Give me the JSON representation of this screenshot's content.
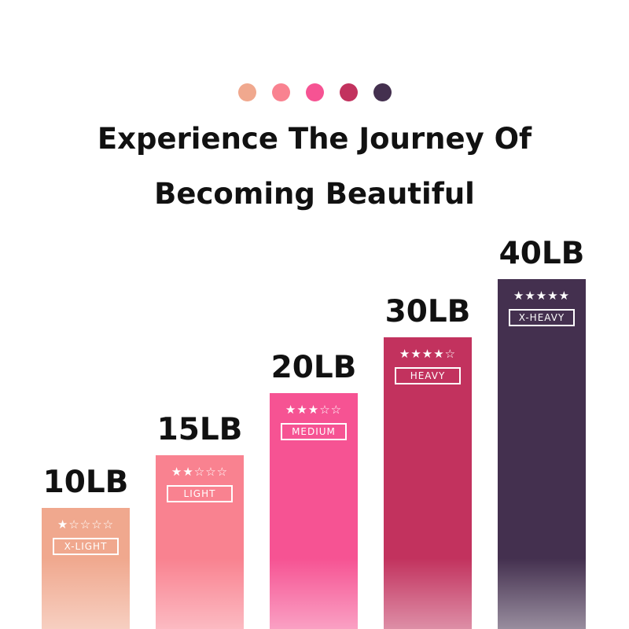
{
  "colors": [
    "#f0a88e",
    "#f98290",
    "#f65393",
    "#c2325e",
    "#44304f"
  ],
  "title_line1": "Experience The Journey Of",
  "title_line2": "Becoming Beautiful",
  "levels": [
    {
      "weight": "10LB",
      "tag": "X-LIGHT",
      "stars": 1,
      "color": "#f0a88e"
    },
    {
      "weight": "15LB",
      "tag": "LIGHT",
      "stars": 2,
      "color": "#f98290"
    },
    {
      "weight": "20LB",
      "tag": "MEDIUM",
      "stars": 3,
      "color": "#f65393"
    },
    {
      "weight": "30LB",
      "tag": "HEAVY",
      "stars": 4,
      "color": "#c2325e"
    },
    {
      "weight": "40LB",
      "tag": "X-HEAVY",
      "stars": 5,
      "color": "#44304f"
    }
  ]
}
